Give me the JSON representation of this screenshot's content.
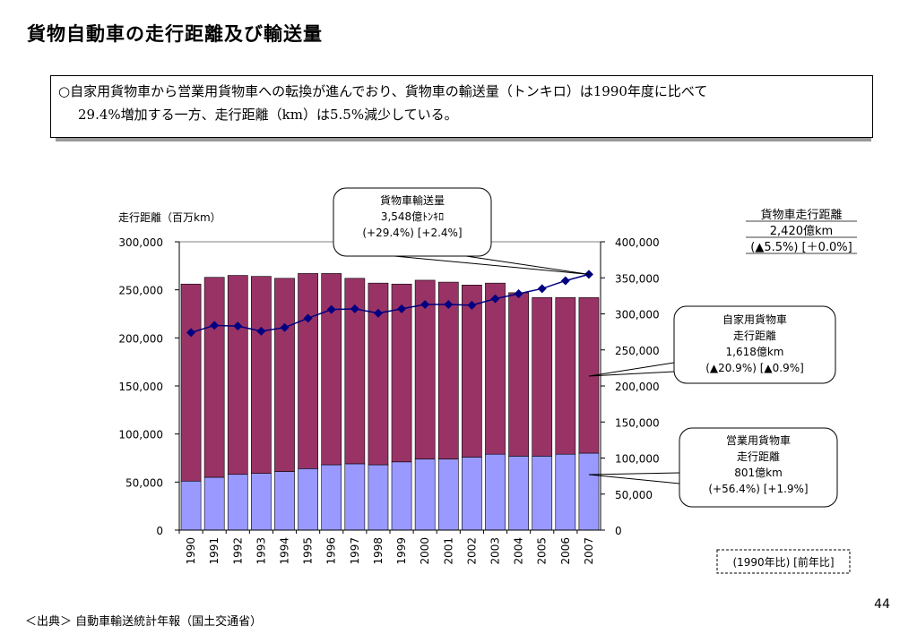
{
  "title": "貨物自動車の走行距離及び輸送量",
  "summary": {
    "line1": "○自家用貨物車から営業用貨物車への転換が進んでおり、貨物車の輸送量（トンキロ）は1990年度に比べて",
    "line2": "29.4%増加する一方、走行距離（km）は5.5%減少している。"
  },
  "chart_data": {
    "type": "bar",
    "stacked": true,
    "categories": [
      "1990",
      "1991",
      "1992",
      "1993",
      "1994",
      "1995",
      "1996",
      "1997",
      "1998",
      "1999",
      "2000",
      "2001",
      "2002",
      "2003",
      "2004",
      "2005",
      "2006",
      "2007"
    ],
    "series": [
      {
        "name": "営業用貨物車",
        "color": "#9999ff",
        "values": [
          51000,
          55000,
          58000,
          59000,
          61000,
          64000,
          68000,
          69000,
          68000,
          71000,
          74000,
          74000,
          76000,
          79000,
          77000,
          77000,
          79000,
          80100
        ]
      },
      {
        "name": "自家用貨物車",
        "color": "#993366",
        "values": [
          205000,
          208000,
          207000,
          205000,
          201000,
          203000,
          199000,
          193000,
          189000,
          185000,
          186000,
          184000,
          179000,
          178000,
          170000,
          165000,
          163000,
          161800
        ]
      },
      {
        "name": "貨物車輸送量",
        "type": "line",
        "axis": "right",
        "color": "#000080",
        "values": [
          274000,
          284000,
          283000,
          276000,
          281000,
          294000,
          306000,
          307000,
          301000,
          307000,
          313000,
          313000,
          312000,
          321000,
          328000,
          335000,
          346000,
          354800
        ]
      }
    ],
    "ylabel": "走行距離（百万km）",
    "ylim": [
      0,
      300000
    ],
    "yticks": [
      "0",
      "50,000",
      "100,000",
      "150,000",
      "200,000",
      "250,000",
      "300,000"
    ],
    "y2lim": [
      0,
      400000
    ],
    "y2ticks": [
      "0",
      "50,000",
      "100,000",
      "150,000",
      "200,000",
      "250,000",
      "300,000",
      "350,000",
      "400,000"
    ],
    "grid": false,
    "callouts": {
      "transport": [
        "貨物車輸送量",
        "3,548億ﾄﾝｷﾛ",
        "(+29.4%) [+2.4%]"
      ],
      "total": [
        "貨物車走行距離",
        "2,420億km",
        "(▲5.5%) [＋0.0%]"
      ],
      "private": [
        "自家用貨物車",
        "走行距離",
        "1,618億km",
        "(▲20.9%) [▲0.9%]"
      ],
      "business": [
        "営業用貨物車",
        "走行距離",
        "801億km",
        "(+56.4%) [+1.9%]"
      ]
    },
    "note": "(1990年比) [前年比]"
  },
  "page_number": "44",
  "source": "＜出典＞ 自動車輸送統計年報（国土交通省）"
}
